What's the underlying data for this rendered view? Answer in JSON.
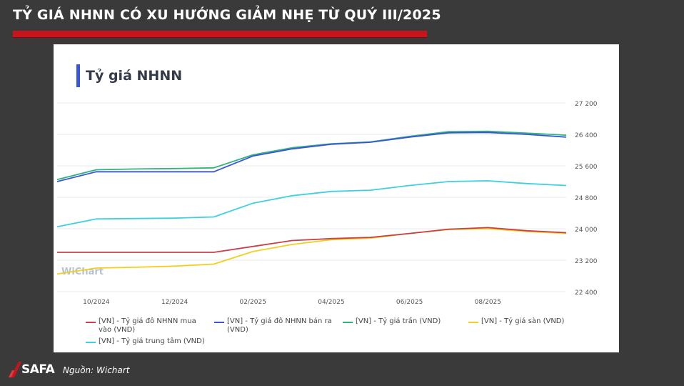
{
  "headline": "TỶ GIÁ NHNN CÓ XU HƯỚNG GIẢM NHẸ TỪ QUÝ III/2025",
  "card_title": "Tỷ giá NHNN",
  "watermark": "WiChart",
  "logo": "SAFA",
  "source": "Nguồn: Wichart",
  "colors": {
    "headline_bar": "#c8141b",
    "accent": "#3b55d9",
    "mua_vao": "#c8404a",
    "ban_ra": "#3b55d9",
    "tran": "#2fb57a",
    "san": "#f2cf1e",
    "trung_tam": "#3fd0e0"
  },
  "chart_data": {
    "type": "line",
    "title": "Tỷ giá NHNN",
    "x_labels": [
      "10/2024",
      "12/2024",
      "02/2025",
      "04/2025",
      "06/2025",
      "08/2025"
    ],
    "x": [
      "2024-09",
      "2024-10",
      "2024-11",
      "2024-12",
      "2025-01",
      "2025-02",
      "2025-03",
      "2025-04",
      "2025-05",
      "2025-06",
      "2025-07",
      "2025-08",
      "2025-09",
      "2025-10"
    ],
    "ylim": [
      22400,
      27200
    ],
    "y_ticks": [
      "27 200",
      "26 400",
      "25 600",
      "24 800",
      "24 000",
      "23 200",
      "22 400"
    ],
    "y_tick_values": [
      27200,
      26400,
      25600,
      24800,
      24000,
      23200,
      22400
    ],
    "grid": true,
    "legend_position": "bottom",
    "series": [
      {
        "name": "[VN] - Tỷ giá đô NHNN mua vào (VND)",
        "color_key": "mua_vao",
        "values": [
          23400,
          23400,
          23400,
          23400,
          23400,
          23550,
          23700,
          23750,
          23780,
          23880,
          23990,
          24030,
          23950,
          23900
        ]
      },
      {
        "name": "[VN] - Tỷ giá đô NHNN bán ra (VND)",
        "color_key": "ban_ra",
        "values": [
          25200,
          25450,
          25450,
          25450,
          25450,
          25850,
          26030,
          26150,
          26200,
          26330,
          26440,
          26450,
          26400,
          26330
        ]
      },
      {
        "name": "[VN] - Tỷ giá trần (VND)",
        "color_key": "tran",
        "values": [
          25250,
          25500,
          25520,
          25530,
          25550,
          25880,
          26060,
          26160,
          26210,
          26350,
          26470,
          26480,
          26430,
          26380
        ]
      },
      {
        "name": "[VN] - Tỷ giá sàn (VND)",
        "color_key": "san",
        "values": [
          22850,
          23000,
          23020,
          23050,
          23100,
          23420,
          23600,
          23720,
          23760,
          23880,
          23980,
          24000,
          23930,
          23880
        ]
      },
      {
        "name": "[VN] - Tỷ giá trung tâm (VND)",
        "color_key": "trung_tam",
        "values": [
          24050,
          24250,
          24260,
          24270,
          24300,
          24650,
          24840,
          24950,
          24980,
          25100,
          25200,
          25220,
          25150,
          25100
        ]
      }
    ]
  }
}
